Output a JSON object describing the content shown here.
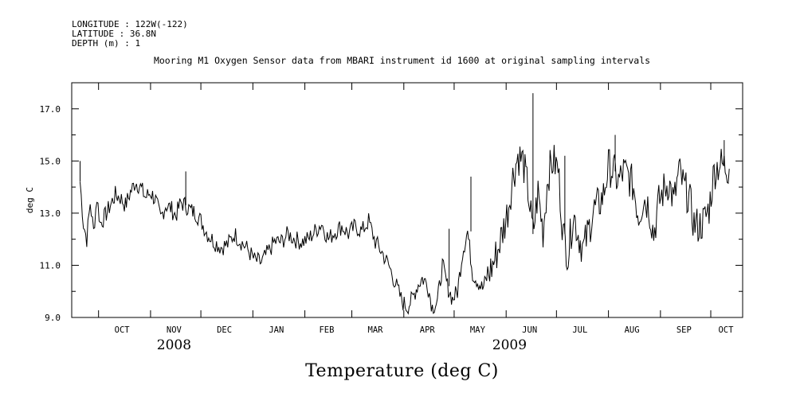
{
  "header": {
    "longitude": "LONGITUDE : 122W(-122)",
    "latitude": "LATITUDE : 36.8N",
    "depth": "DEPTH (m) : 1"
  },
  "chart_data": {
    "type": "line",
    "title": "Mooring M1 Oxygen Sensor data from MBARI instrument id 1600 at original sampling intervals",
    "ylabel": "deg C",
    "xlabel": "Temperature (deg C)",
    "ylim": [
      9.0,
      18.0
    ],
    "yticks": [
      "9.0",
      "11.0",
      "13.0",
      "15.0",
      "17.0"
    ],
    "x_range": [
      "2008-09-15",
      "2009-10-20"
    ],
    "months": [
      "OCT",
      "NOV",
      "DEC",
      "JAN",
      "FEB",
      "MAR",
      "APR",
      "MAY",
      "JUN",
      "JUL",
      "AUG",
      "SEP",
      "OCT"
    ],
    "years": [
      "2008",
      "2009"
    ],
    "grid": false,
    "series": [
      {
        "x": [
          "2008-09-20",
          "2008-09-22",
          "2008-09-24",
          "2008-09-26",
          "2008-09-28",
          "2008-09-30",
          "2008-10-02",
          "2008-10-05",
          "2008-10-08",
          "2008-10-11",
          "2008-10-14",
          "2008-10-17",
          "2008-10-20",
          "2008-10-23",
          "2008-10-26",
          "2008-10-29",
          "2008-11-01",
          "2008-11-04",
          "2008-11-07",
          "2008-11-10",
          "2008-11-13",
          "2008-11-16",
          "2008-11-19",
          "2008-11-22",
          "2008-11-25",
          "2008-11-28",
          "2008-12-01",
          "2008-12-05",
          "2008-12-09",
          "2008-12-13",
          "2008-12-17",
          "2008-12-21",
          "2008-12-25",
          "2008-12-29",
          "2009-01-02",
          "2009-01-06",
          "2009-01-10",
          "2009-01-14",
          "2009-01-18",
          "2009-01-22",
          "2009-01-26",
          "2009-01-30",
          "2009-02-03",
          "2009-02-07",
          "2009-02-11",
          "2009-02-15",
          "2009-02-19",
          "2009-02-23",
          "2009-02-27",
          "2009-03-03",
          "2009-03-07",
          "2009-03-11",
          "2009-03-15",
          "2009-03-19",
          "2009-03-23",
          "2009-03-27",
          "2009-03-31",
          "2009-04-03",
          "2009-04-06",
          "2009-04-09",
          "2009-04-12",
          "2009-04-15",
          "2009-04-18",
          "2009-04-21",
          "2009-04-24",
          "2009-04-27",
          "2009-04-30",
          "2009-05-03",
          "2009-05-06",
          "2009-05-09",
          "2009-05-12",
          "2009-05-15",
          "2009-05-18",
          "2009-05-21",
          "2009-05-24",
          "2009-05-27",
          "2009-05-30",
          "2009-06-02",
          "2009-06-05",
          "2009-06-08",
          "2009-06-11",
          "2009-06-14",
          "2009-06-17",
          "2009-06-20",
          "2009-06-23",
          "2009-06-26",
          "2009-06-29",
          "2009-07-02",
          "2009-07-05",
          "2009-07-08",
          "2009-07-11",
          "2009-07-14",
          "2009-07-17",
          "2009-07-20",
          "2009-07-23",
          "2009-07-26",
          "2009-07-29",
          "2009-08-01",
          "2009-08-04",
          "2009-08-07",
          "2009-08-10",
          "2009-08-13",
          "2009-08-16",
          "2009-08-19",
          "2009-08-22",
          "2009-08-25",
          "2009-08-28",
          "2009-08-31",
          "2009-09-03",
          "2009-09-06",
          "2009-09-09",
          "2009-09-12",
          "2009-09-15",
          "2009-09-18",
          "2009-09-21",
          "2009-09-24",
          "2009-09-27",
          "2009-09-30",
          "2009-10-03",
          "2009-10-06",
          "2009-10-09",
          "2009-10-12"
        ],
        "values": [
          14.2,
          12.6,
          12.0,
          13.4,
          12.3,
          13.6,
          12.6,
          12.9,
          13.3,
          13.7,
          13.6,
          13.3,
          13.8,
          14.2,
          14.0,
          13.6,
          13.8,
          13.5,
          12.8,
          13.3,
          13.2,
          12.9,
          13.4,
          13.3,
          13.1,
          13.0,
          12.7,
          12.2,
          11.9,
          11.7,
          11.8,
          12.2,
          11.9,
          11.6,
          11.2,
          11.1,
          11.5,
          11.9,
          11.9,
          12.2,
          12.0,
          11.9,
          12.0,
          12.3,
          12.6,
          12.0,
          12.3,
          12.5,
          12.2,
          12.5,
          12.3,
          12.7,
          11.9,
          11.5,
          11.0,
          10.3,
          9.6,
          9.4,
          9.7,
          10.2,
          10.5,
          10.3,
          9.4,
          9.6,
          11.0,
          10.2,
          9.7,
          10.0,
          11.5,
          12.3,
          10.7,
          10.4,
          10.1,
          10.6,
          11.0,
          11.6,
          12.3,
          13.1,
          14.4,
          15.2,
          15.0,
          13.9,
          12.2,
          13.8,
          12.3,
          14.5,
          15.0,
          14.7,
          12.2,
          11.4,
          13.0,
          12.2,
          11.6,
          12.3,
          13.1,
          13.3,
          13.7,
          14.8,
          14.6,
          14.2,
          14.6,
          14.4,
          14.0,
          12.9,
          13.6,
          13.3,
          12.2,
          13.4,
          13.9,
          14.2,
          13.4,
          14.6,
          14.0,
          13.6,
          12.6,
          12.5,
          12.7,
          13.2,
          14.6,
          14.9,
          14.8,
          14.7
        ],
        "spikes": [
          {
            "x": "2008-09-20",
            "value": 15.0
          },
          {
            "x": "2008-11-22",
            "value": 14.6
          },
          {
            "x": "2009-04-28",
            "value": 12.4
          },
          {
            "x": "2009-05-11",
            "value": 14.4
          },
          {
            "x": "2009-06-17",
            "value": 17.6
          },
          {
            "x": "2009-07-06",
            "value": 15.2
          },
          {
            "x": "2009-08-05",
            "value": 16.0
          },
          {
            "x": "2009-10-09",
            "value": 15.8
          }
        ]
      }
    ]
  }
}
